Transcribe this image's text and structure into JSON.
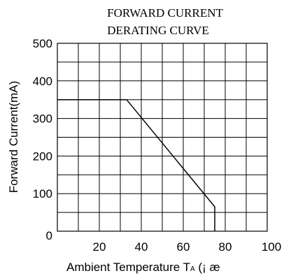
{
  "chart_data": {
    "type": "line",
    "title_lines": [
      "FORWARD CURRENT",
      "DERATING CURVE"
    ],
    "ylabel": "Forward Current(mA)",
    "xlabel": "Ambient Temperature T",
    "xlabel_sub": "A",
    "xlabel_suffix": " (¡ æ",
    "xlim": [
      0,
      100
    ],
    "ylim": [
      0,
      500
    ],
    "x_ticks": [
      20,
      40,
      60,
      80,
      100
    ],
    "y_ticks": [
      0,
      100,
      200,
      300,
      400,
      500
    ],
    "grid": true,
    "series": [
      {
        "x": [
          0,
          33,
          75,
          75
        ],
        "y": [
          350,
          350,
          65,
          0
        ]
      }
    ]
  },
  "colors": {
    "line": "#000000",
    "grid": "#000000"
  }
}
